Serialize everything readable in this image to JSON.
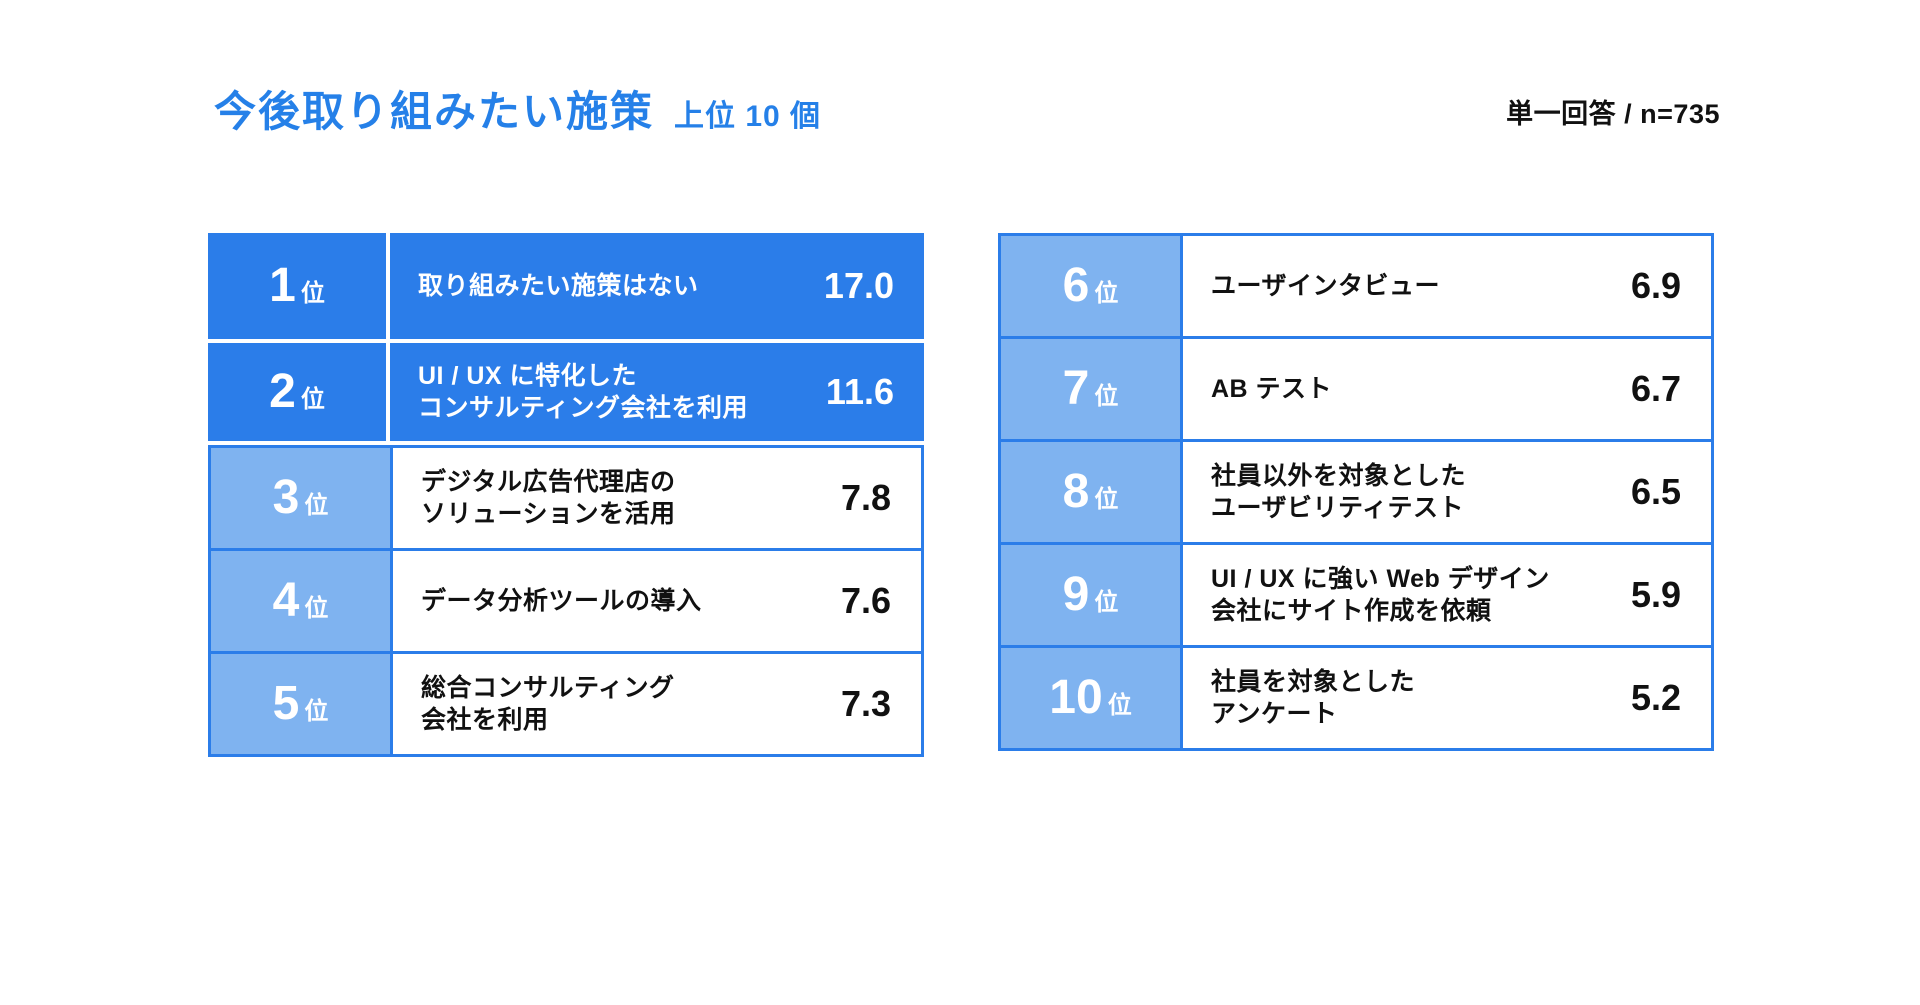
{
  "header": {
    "title": "今後取り組みたい施策",
    "subtitle": "上位 10 個",
    "note": "単一回答 / n=735"
  },
  "labels": {
    "rank_suffix": "位"
  },
  "colors": {
    "accent": "#2b7de9",
    "accent_light": "#7fb3f0",
    "title": "#2580e8",
    "text": "#111111",
    "background": "#ffffff"
  },
  "chart_data": {
    "type": "table",
    "title": "今後取り組みたい施策 上位 10 個",
    "note": "単一回答 / n=735",
    "columns": [
      "rank",
      "label",
      "value"
    ],
    "legend_note": "rows ranked 1-2 highlighted in solid blue",
    "items": [
      {
        "rank": "1",
        "label": "取り組みたい施策はない",
        "value": 17.0,
        "display": "17.0",
        "highlight": true
      },
      {
        "rank": "2",
        "label": "UI / UX に特化した\nコンサルティング会社を利用",
        "value": 11.6,
        "display": "11.6",
        "highlight": true
      },
      {
        "rank": "3",
        "label": "デジタル広告代理店の\nソリューションを活用",
        "value": 7.8,
        "display": "7.8",
        "highlight": false
      },
      {
        "rank": "4",
        "label": "データ分析ツールの導入",
        "value": 7.6,
        "display": "7.6",
        "highlight": false
      },
      {
        "rank": "5",
        "label": "総合コンサルティング\n会社を利用",
        "value": 7.3,
        "display": "7.3",
        "highlight": false
      },
      {
        "rank": "6",
        "label": "ユーザインタビュー",
        "value": 6.9,
        "display": "6.9",
        "highlight": false
      },
      {
        "rank": "7",
        "label": "AB テスト",
        "value": 6.7,
        "display": "6.7",
        "highlight": false
      },
      {
        "rank": "8",
        "label": "社員以外を対象とした\nユーザビリティテスト",
        "value": 6.5,
        "display": "6.5",
        "highlight": false
      },
      {
        "rank": "9",
        "label": "UI / UX に強い Web デザイン\n会社にサイト作成を依頼",
        "value": 5.9,
        "display": "5.9",
        "highlight": false
      },
      {
        "rank": "10",
        "label": "社員を対象とした\nアンケート",
        "value": 5.2,
        "display": "5.2",
        "highlight": false
      }
    ]
  }
}
